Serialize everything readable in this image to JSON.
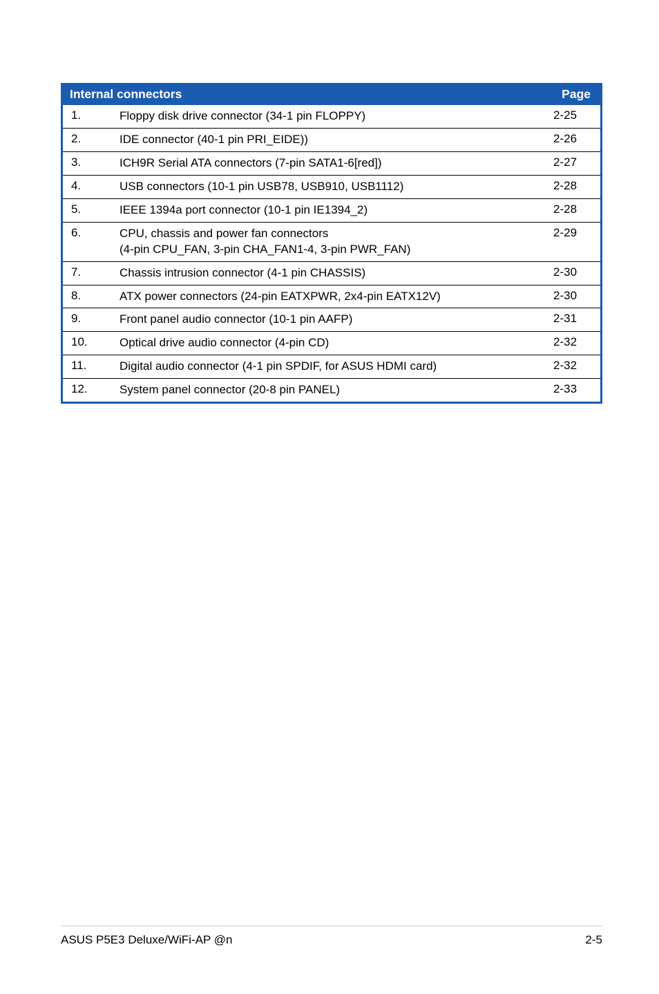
{
  "table": {
    "header_title": "Internal connectors",
    "header_page": "Page",
    "header_bg": "#1a5cb0",
    "header_fg": "#ffffff",
    "border_color": "#1a5cb0",
    "row_border_color": "#000000",
    "rows": [
      {
        "num": "1.",
        "desc": "Floppy disk drive connector (34-1 pin FLOPPY)",
        "page": "2-25"
      },
      {
        "num": "2.",
        "desc": "IDE connector (40-1 pin PRI_EIDE))",
        "page": "2-26"
      },
      {
        "num": "3.",
        "desc": "ICH9R Serial ATA connectors (7-pin SATA1-6[red])",
        "page": "2-27"
      },
      {
        "num": "4.",
        "desc": "USB connectors (10-1 pin USB78, USB910, USB1112)",
        "page": "2-28"
      },
      {
        "num": "5.",
        "desc": "IEEE 1394a port connector (10-1 pin IE1394_2)",
        "page": "2-28"
      },
      {
        "num": "6.",
        "desc": "CPU, chassis and power fan connectors\n(4-pin CPU_FAN, 3-pin CHA_FAN1-4, 3-pin PWR_FAN)",
        "page": "2-29"
      },
      {
        "num": "7.",
        "desc": "Chassis intrusion connector (4-1 pin CHASSIS)",
        "page": "2-30"
      },
      {
        "num": "8.",
        "desc": "ATX power connectors (24-pin EATXPWR, 2x4-pin EATX12V)",
        "page": "2-30"
      },
      {
        "num": "9.",
        "desc": "Front panel audio connector (10-1 pin AAFP)",
        "page": "2-31"
      },
      {
        "num": "10.",
        "desc": "Optical drive audio connector (4-pin CD)",
        "page": "2-32"
      },
      {
        "num": "11.",
        "desc": "Digital audio connector (4-1 pin SPDIF, for ASUS HDMI card)",
        "page": "2-32"
      },
      {
        "num": "12.",
        "desc": "System panel connector (20-8 pin PANEL)",
        "page": "2-33"
      }
    ]
  },
  "footer": {
    "left": "ASUS P5E3 Deluxe/WiFi-AP @n",
    "right": "2-5",
    "rule_color": "#b9d3e8"
  }
}
